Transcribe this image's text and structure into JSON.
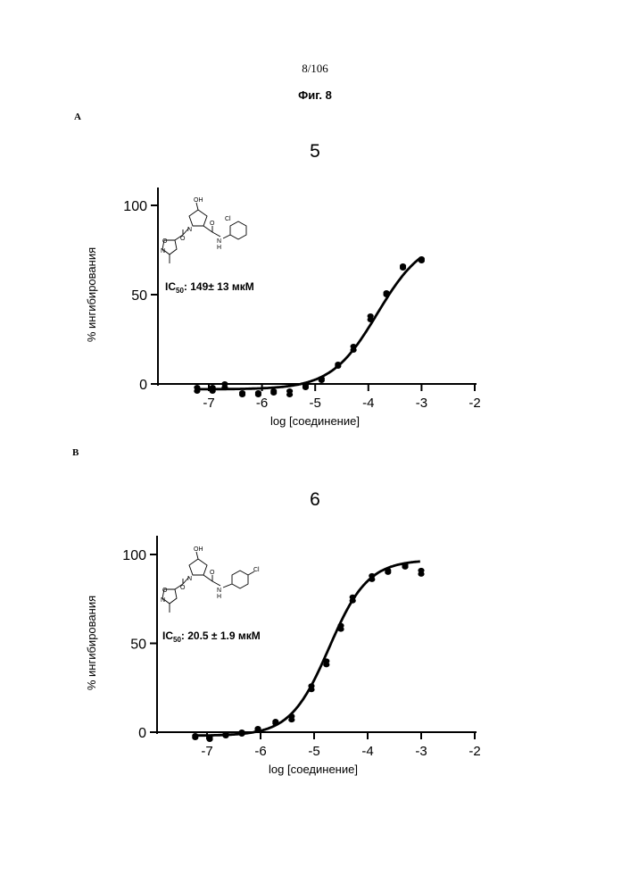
{
  "page": {
    "page_number": "8/106",
    "figure_title": "Фиг. 8",
    "panel_a_letter": "A",
    "panel_b_letter": "B"
  },
  "chart_data": [
    {
      "type": "scatter",
      "title": "5",
      "xlabel": "log [соединение]",
      "ylabel": "% ингибирования",
      "xlim": [
        -7.5,
        -2
      ],
      "ylim": [
        -5,
        110
      ],
      "x_ticks": [
        "-7",
        "-6",
        "-5",
        "-4",
        "-3",
        "-2"
      ],
      "y_ticks": [
        "0",
        "50",
        "100"
      ],
      "annotation": {
        "ic50_label": "IC",
        "ic50_sub": "50",
        "ic50_value": ": 149± 13 мкМ"
      },
      "fit_curve": {
        "bottom": -3,
        "top": 82,
        "log_ic50": -3.83,
        "hill": 1.0
      },
      "series": [
        {
          "values": [
            [
              -7.22,
              -2
            ],
            [
              -7.22,
              -4
            ],
            [
              -6.93,
              -2
            ],
            [
              -6.93,
              -4
            ],
            [
              -6.7,
              0
            ],
            [
              -6.7,
              -2
            ],
            [
              -6.37,
              -5
            ],
            [
              -6.37,
              -6
            ],
            [
              -6.07,
              -5
            ],
            [
              -6.07,
              -6
            ],
            [
              -5.78,
              -4
            ],
            [
              -5.78,
              -5
            ],
            [
              -5.48,
              -4
            ],
            [
              -5.48,
              -6
            ],
            [
              -5.18,
              -1
            ],
            [
              -5.18,
              -2
            ],
            [
              -4.88,
              2
            ],
            [
              -4.88,
              3
            ],
            [
              -4.57,
              10
            ],
            [
              -4.57,
              11
            ],
            [
              -4.28,
              19
            ],
            [
              -4.28,
              21
            ],
            [
              -3.96,
              36
            ],
            [
              -3.96,
              38
            ],
            [
              -3.66,
              50
            ],
            [
              -3.66,
              51
            ],
            [
              -3.35,
              66
            ],
            [
              -3.35,
              65
            ],
            [
              -3.0,
              70
            ],
            [
              -3.0,
              69
            ]
          ]
        }
      ]
    },
    {
      "type": "scatter",
      "title": "6",
      "xlabel": "log [соединение]",
      "ylabel": "% ингибирования",
      "xlim": [
        -7.5,
        -2
      ],
      "ylim": [
        -5,
        110
      ],
      "x_ticks": [
        "-7",
        "-6",
        "-5",
        "-4",
        "-3",
        "-2"
      ],
      "y_ticks": [
        "0",
        "50",
        "100"
      ],
      "annotation": {
        "ic50_label": "IC",
        "ic50_sub": "50",
        "ic50_value": ": 20.5 ± 1.9 мкМ"
      },
      "fit_curve": {
        "bottom": -2,
        "top": 97,
        "log_ic50": -4.72,
        "hill": 1.2
      },
      "series": [
        {
          "values": [
            [
              -7.22,
              -2
            ],
            [
              -7.22,
              -3
            ],
            [
              -6.95,
              -3
            ],
            [
              -6.95,
              -4
            ],
            [
              -6.65,
              -2
            ],
            [
              -6.65,
              -1
            ],
            [
              -6.35,
              -1
            ],
            [
              -6.35,
              0
            ],
            [
              -6.05,
              1
            ],
            [
              -6.05,
              2
            ],
            [
              -5.72,
              5
            ],
            [
              -5.72,
              6
            ],
            [
              -5.42,
              7
            ],
            [
              -5.42,
              9
            ],
            [
              -5.05,
              24
            ],
            [
              -5.05,
              26
            ],
            [
              -4.77,
              38
            ],
            [
              -4.77,
              40
            ],
            [
              -4.5,
              58
            ],
            [
              -4.5,
              60
            ],
            [
              -4.28,
              74
            ],
            [
              -4.28,
              76
            ],
            [
              -3.92,
              86
            ],
            [
              -3.92,
              88
            ],
            [
              -3.62,
              90
            ],
            [
              -3.62,
              91
            ],
            [
              -3.3,
              93
            ],
            [
              -3.3,
              94
            ],
            [
              -3.0,
              89
            ],
            [
              -3.0,
              91
            ]
          ]
        }
      ]
    }
  ]
}
